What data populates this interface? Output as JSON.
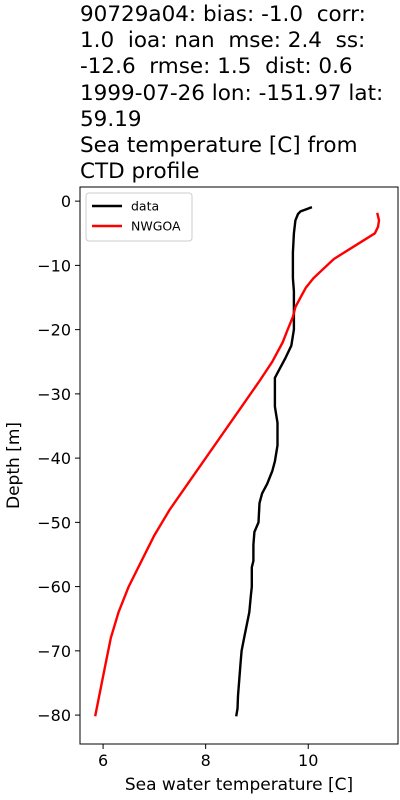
{
  "title_lines": [
    "90729a04: bias: -1.0  corr:",
    "1.0  ioa: nan  mse: 2.4  ss:",
    "-12.6  rmse: 1.5  dist: 0.6",
    "1999-07-26 lon: -151.97 lat:",
    "59.19",
    "Sea temperature [C] from",
    "CTD profile"
  ],
  "chart_data": {
    "type": "line",
    "xlabel": "Sea water temperature [C]",
    "ylabel": "Depth [m]",
    "xlim": [
      5.55,
      11.75
    ],
    "ylim": [
      -84.5,
      2.2
    ],
    "xticks": [
      6,
      8,
      10
    ],
    "yticks": [
      0,
      -10,
      -20,
      -30,
      -40,
      -50,
      -60,
      -70,
      -80
    ],
    "tick_labels": {
      "x": [
        "6",
        "8",
        "10"
      ],
      "y": [
        "0",
        "−10",
        "−20",
        "−30",
        "−40",
        "−50",
        "−60",
        "−70",
        "−80"
      ]
    },
    "grid": false,
    "legend": "top-left",
    "series": [
      {
        "name": "data",
        "color": "#000000",
        "points": [
          [
            10.05,
            -1.0
          ],
          [
            9.95,
            -1.3
          ],
          [
            9.85,
            -1.6
          ],
          [
            9.8,
            -2.0
          ],
          [
            9.75,
            -3.0
          ],
          [
            9.72,
            -5.0
          ],
          [
            9.7,
            -8.0
          ],
          [
            9.7,
            -12.0
          ],
          [
            9.72,
            -14.0
          ],
          [
            9.72,
            -20.0
          ],
          [
            9.67,
            -22.5
          ],
          [
            9.55,
            -24.5
          ],
          [
            9.45,
            -26.0
          ],
          [
            9.35,
            -27.5
          ],
          [
            9.35,
            -30.0
          ],
          [
            9.35,
            -32.0
          ],
          [
            9.4,
            -34.5
          ],
          [
            9.4,
            -38.0
          ],
          [
            9.35,
            -40.5
          ],
          [
            9.3,
            -42.0
          ],
          [
            9.2,
            -44.0
          ],
          [
            9.1,
            -45.5
          ],
          [
            9.05,
            -47.0
          ],
          [
            9.03,
            -50.0
          ],
          [
            8.95,
            -51.5
          ],
          [
            8.93,
            -53.5
          ],
          [
            8.93,
            -56.0
          ],
          [
            8.9,
            -57.0
          ],
          [
            8.9,
            -60.0
          ],
          [
            8.88,
            -61.5
          ],
          [
            8.85,
            -64.0
          ],
          [
            8.8,
            -66.0
          ],
          [
            8.75,
            -68.0
          ],
          [
            8.7,
            -70.0
          ],
          [
            8.68,
            -72.0
          ],
          [
            8.65,
            -75.0
          ],
          [
            8.63,
            -77.0
          ],
          [
            8.62,
            -79.0
          ],
          [
            8.6,
            -80.0
          ]
        ]
      },
      {
        "name": "NWGOA",
        "color": "#ff0000",
        "points": [
          [
            11.35,
            -2.0
          ],
          [
            11.38,
            -3.0
          ],
          [
            11.36,
            -4.0
          ],
          [
            11.3,
            -5.0
          ],
          [
            11.1,
            -6.0
          ],
          [
            10.8,
            -7.5
          ],
          [
            10.5,
            -9.0
          ],
          [
            10.3,
            -10.5
          ],
          [
            10.1,
            -12.0
          ],
          [
            9.95,
            -13.5
          ],
          [
            9.85,
            -15.0
          ],
          [
            9.75,
            -16.5
          ],
          [
            9.7,
            -18.0
          ],
          [
            9.6,
            -20.0
          ],
          [
            9.5,
            -22.0
          ],
          [
            9.3,
            -25.0
          ],
          [
            9.05,
            -28.0
          ],
          [
            8.7,
            -32.0
          ],
          [
            8.35,
            -36.0
          ],
          [
            8.0,
            -40.0
          ],
          [
            7.65,
            -44.0
          ],
          [
            7.3,
            -48.0
          ],
          [
            7.0,
            -52.0
          ],
          [
            6.75,
            -56.0
          ],
          [
            6.5,
            -60.0
          ],
          [
            6.3,
            -64.0
          ],
          [
            6.15,
            -68.0
          ],
          [
            6.05,
            -72.0
          ],
          [
            5.95,
            -76.0
          ],
          [
            5.85,
            -80.0
          ]
        ]
      }
    ]
  }
}
